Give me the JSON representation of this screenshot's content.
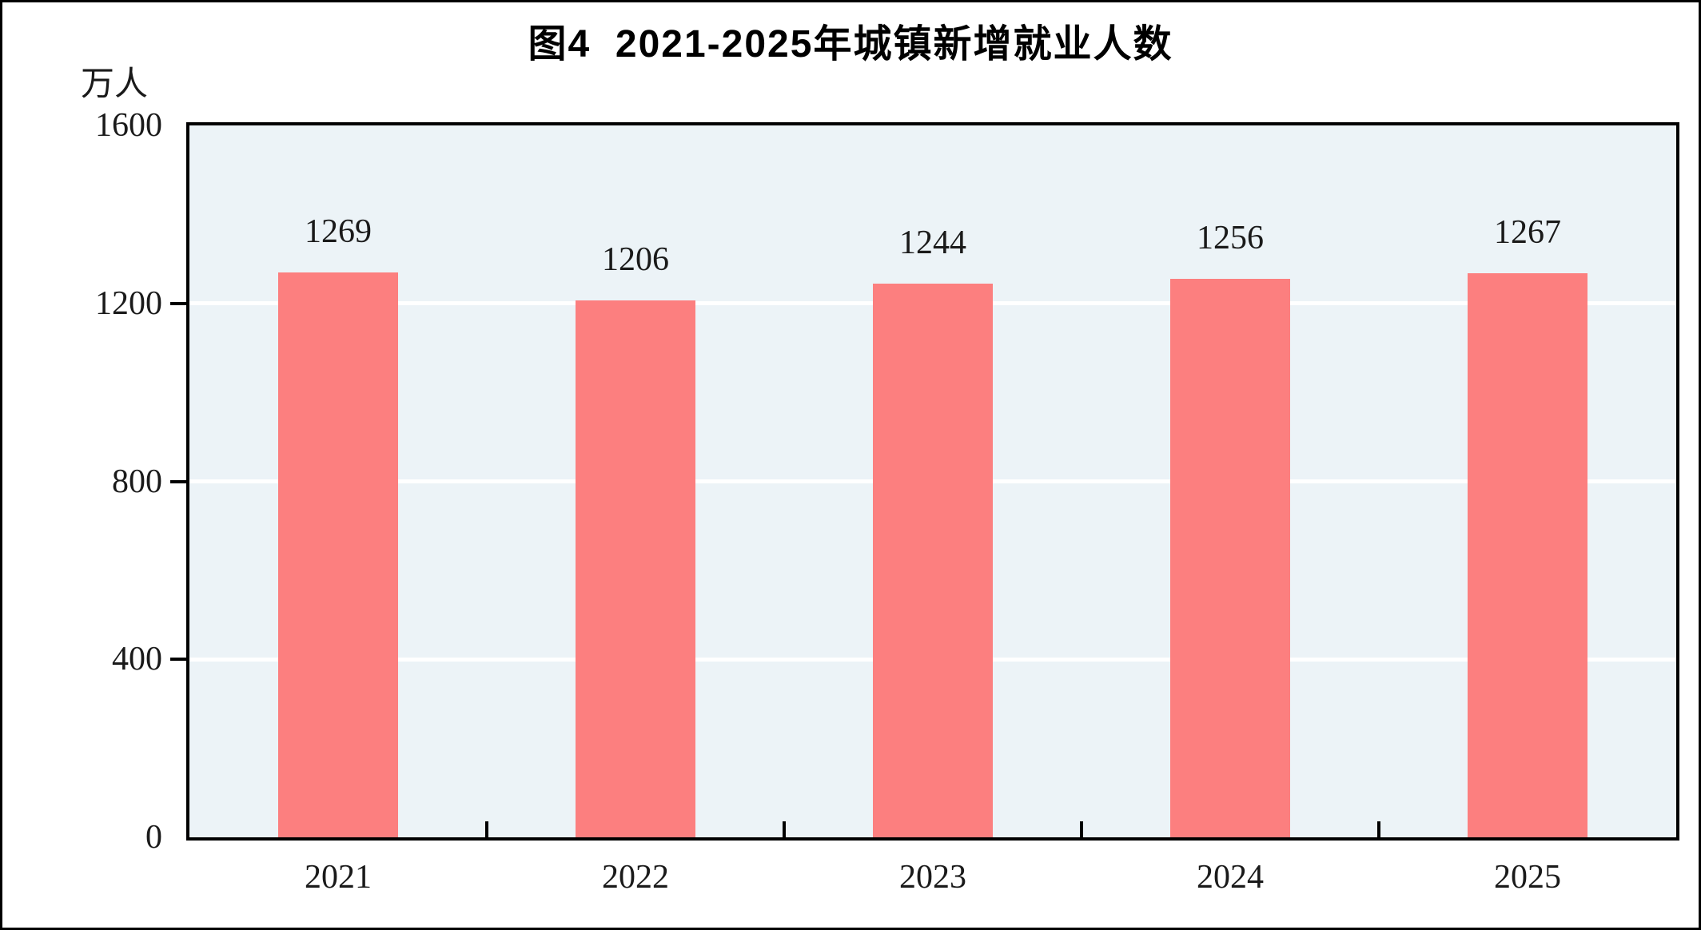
{
  "title": "图4  2021-2025年城镇新增就业人数",
  "y_unit_label": "万人",
  "chart_data": {
    "type": "bar",
    "title": "图4  2021-2025年城镇新增就业人数",
    "categories": [
      "2021",
      "2022",
      "2023",
      "2024",
      "2025"
    ],
    "values": [
      1269,
      1206,
      1244,
      1256,
      1267
    ],
    "xlabel": "",
    "ylabel": "万人",
    "ylim": [
      0,
      1600
    ],
    "yticks": [
      0,
      400,
      800,
      1200,
      1600
    ],
    "grid": "horizontal white gridlines at interior ticks",
    "legend": "none",
    "data_labels": true,
    "bar_color": "#FC7F7F",
    "plot_bg_color": "#ECF3F7",
    "gridline_color": "#FFFFFF",
    "axis_color": "#000000",
    "label_color": "#1a1a1a"
  }
}
